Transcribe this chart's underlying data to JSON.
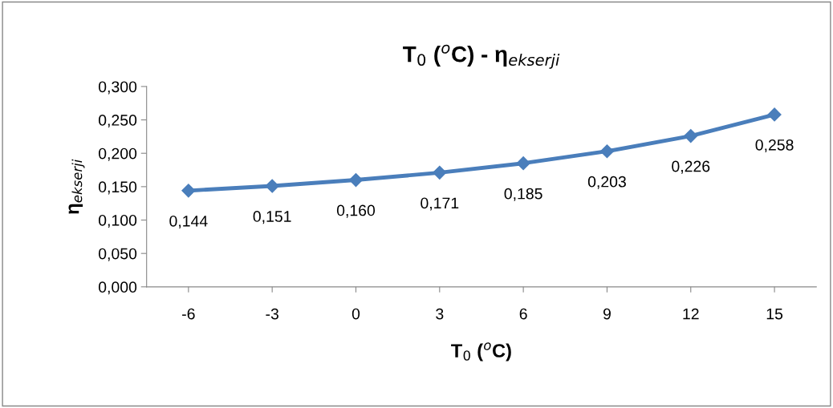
{
  "chart_data": {
    "type": "line",
    "title": "T$_{0}$ ($^{o}$C) - η$_{ekserji}$",
    "xlabel": "T$_{0}$ ($^{o}$C)",
    "ylabel": "η$_{ekserji}$",
    "categories": [
      "-6",
      "-3",
      "0",
      "3",
      "6",
      "9",
      "12",
      "15"
    ],
    "series": [
      {
        "color": "#4a7ebb",
        "values": [
          0.144,
          0.151,
          0.16,
          0.171,
          0.185,
          0.203,
          0.226,
          0.258
        ],
        "value_labels": [
          "0,144",
          "0,151",
          "0,160",
          "0,171",
          "0,185",
          "0,203",
          "0,226",
          "0,258"
        ]
      }
    ],
    "ylim": [
      0,
      0.3
    ],
    "yticks": [
      {
        "value": 0,
        "label": "0,000"
      },
      {
        "value": 0.05,
        "label": "0,050"
      },
      {
        "value": 0.1,
        "label": "0,100"
      },
      {
        "value": 0.15,
        "label": "0,150"
      },
      {
        "value": 0.2,
        "label": "0,200"
      },
      {
        "value": 0.25,
        "label": "0,250"
      },
      {
        "value": 0.3,
        "label": "0,300"
      }
    ],
    "marker": "diamond",
    "line_style": "solid",
    "grid": false,
    "legend": false
  }
}
